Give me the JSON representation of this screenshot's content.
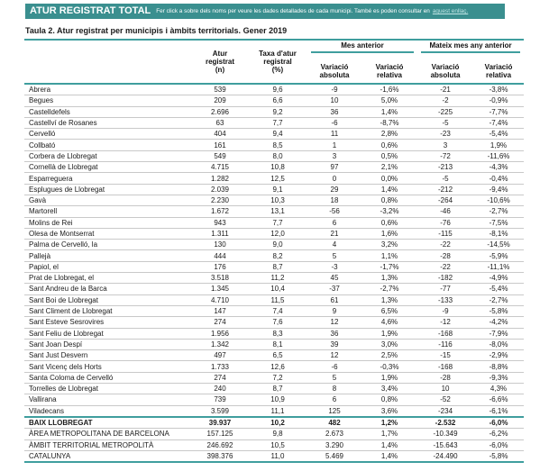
{
  "header_bar": {
    "title": "ATUR REGISTRAT TOTAL",
    "subtitle": "Fer click a sobre dels noms per veure les dades detallades de cada municipi. També es poden consultar en",
    "link_text": "aquest enllaç.",
    "bar_color": "#3a8f8f"
  },
  "table_title": "Taula 2. Atur registrat per municipis i àmbits territorials. Gener 2019",
  "table": {
    "column_headers": {
      "name": "",
      "col_atur": [
        "Atur",
        "registrat",
        "(n)"
      ],
      "col_taxa": [
        "Taxa d'atur",
        "registral",
        "(%)"
      ],
      "group_previous_month": "Mes anterior",
      "group_same_month_last_year": "Mateix mes any anterior",
      "sub_absolute": [
        "Variació",
        "absoluta"
      ],
      "sub_relative": [
        "Variació",
        "relativa"
      ]
    },
    "rows": [
      {
        "type": "municipality",
        "name": "Abrera",
        "values": [
          "539",
          "9,6",
          "-9",
          "-1,6%",
          "-21",
          "-3,8%"
        ]
      },
      {
        "type": "municipality",
        "name": "Begues",
        "values": [
          "209",
          "6,6",
          "10",
          "5,0%",
          "-2",
          "-0,9%"
        ]
      },
      {
        "type": "municipality",
        "name": "Castelldefels",
        "values": [
          "2.696",
          "9,2",
          "36",
          "1,4%",
          "-225",
          "-7,7%"
        ]
      },
      {
        "type": "municipality",
        "name": "Castellví de Rosanes",
        "values": [
          "63",
          "7,7",
          "-6",
          "-8,7%",
          "-5",
          "-7,4%"
        ]
      },
      {
        "type": "municipality",
        "name": "Cervelló",
        "values": [
          "404",
          "9,4",
          "11",
          "2,8%",
          "-23",
          "-5,4%"
        ]
      },
      {
        "type": "municipality",
        "name": "Collbató",
        "values": [
          "161",
          "8,5",
          "1",
          "0,6%",
          "3",
          "1,9%"
        ]
      },
      {
        "type": "municipality",
        "name": "Corbera de Llobregat",
        "values": [
          "549",
          "8,0",
          "3",
          "0,5%",
          "-72",
          "-11,6%"
        ]
      },
      {
        "type": "municipality",
        "name": "Cornellà de Llobregat",
        "values": [
          "4.715",
          "10,8",
          "97",
          "2,1%",
          "-213",
          "-4,3%"
        ]
      },
      {
        "type": "municipality",
        "name": "Esparreguera",
        "values": [
          "1.282",
          "12,5",
          "0",
          "0,0%",
          "-5",
          "-0,4%"
        ]
      },
      {
        "type": "municipality",
        "name": "Esplugues de Llobregat",
        "values": [
          "2.039",
          "9,1",
          "29",
          "1,4%",
          "-212",
          "-9,4%"
        ]
      },
      {
        "type": "municipality",
        "name": "Gavà",
        "values": [
          "2.230",
          "10,3",
          "18",
          "0,8%",
          "-264",
          "-10,6%"
        ]
      },
      {
        "type": "municipality",
        "name": "Martorell",
        "values": [
          "1.672",
          "13,1",
          "-56",
          "-3,2%",
          "-46",
          "-2,7%"
        ]
      },
      {
        "type": "municipality",
        "name": "Molins de Rei",
        "values": [
          "943",
          "7,7",
          "6",
          "0,6%",
          "-76",
          "-7,5%"
        ]
      },
      {
        "type": "municipality",
        "name": "Olesa de Montserrat",
        "values": [
          "1.311",
          "12,0",
          "21",
          "1,6%",
          "-115",
          "-8,1%"
        ]
      },
      {
        "type": "municipality",
        "name": "Palma de Cervelló, la",
        "values": [
          "130",
          "9,0",
          "4",
          "3,2%",
          "-22",
          "-14,5%"
        ]
      },
      {
        "type": "municipality",
        "name": "Pallejà",
        "values": [
          "444",
          "8,2",
          "5",
          "1,1%",
          "-28",
          "-5,9%"
        ]
      },
      {
        "type": "municipality",
        "name": "Papiol, el",
        "values": [
          "176",
          "8,7",
          "-3",
          "-1,7%",
          "-22",
          "-11,1%"
        ]
      },
      {
        "type": "municipality",
        "name": "Prat de Llobregat, el",
        "values": [
          "3.518",
          "11,2",
          "45",
          "1,3%",
          "-182",
          "-4,9%"
        ]
      },
      {
        "type": "municipality",
        "name": "Sant Andreu de la Barca",
        "values": [
          "1.345",
          "10,4",
          "-37",
          "-2,7%",
          "-77",
          "-5,4%"
        ]
      },
      {
        "type": "municipality",
        "name": "Sant Boi de Llobregat",
        "values": [
          "4.710",
          "11,5",
          "61",
          "1,3%",
          "-133",
          "-2,7%"
        ]
      },
      {
        "type": "municipality",
        "name": "Sant Climent de Llobregat",
        "values": [
          "147",
          "7,4",
          "9",
          "6,5%",
          "-9",
          "-5,8%"
        ]
      },
      {
        "type": "municipality",
        "name": "Sant Esteve Sesrovires",
        "values": [
          "274",
          "7,6",
          "12",
          "4,6%",
          "-12",
          "-4,2%"
        ]
      },
      {
        "type": "municipality",
        "name": "Sant Feliu de Llobregat",
        "values": [
          "1.956",
          "8,3",
          "36",
          "1,9%",
          "-168",
          "-7,9%"
        ]
      },
      {
        "type": "municipality",
        "name": "Sant Joan Despí",
        "values": [
          "1.342",
          "8,1",
          "39",
          "3,0%",
          "-116",
          "-8,0%"
        ]
      },
      {
        "type": "municipality",
        "name": "Sant Just Desvern",
        "values": [
          "497",
          "6,5",
          "12",
          "2,5%",
          "-15",
          "-2,9%"
        ]
      },
      {
        "type": "municipality",
        "name": "Sant Vicenç dels Horts",
        "values": [
          "1.733",
          "12,6",
          "-6",
          "-0,3%",
          "-168",
          "-8,8%"
        ]
      },
      {
        "type": "municipality",
        "name": "Santa Coloma de Cervelló",
        "values": [
          "274",
          "7,2",
          "5",
          "1,9%",
          "-28",
          "-9,3%"
        ]
      },
      {
        "type": "municipality",
        "name": "Torrelles de Llobregat",
        "values": [
          "240",
          "8,7",
          "8",
          "3,4%",
          "10",
          "4,3%"
        ]
      },
      {
        "type": "municipality",
        "name": "Vallirana",
        "values": [
          "739",
          "10,9",
          "6",
          "0,8%",
          "-52",
          "-6,6%"
        ]
      },
      {
        "type": "municipality",
        "name": "Viladecans",
        "values": [
          "3.599",
          "11,1",
          "125",
          "3,6%",
          "-234",
          "-6,1%"
        ]
      },
      {
        "type": "total-bold",
        "name": "BAIX LLOBREGAT",
        "values": [
          "39.937",
          "10,2",
          "482",
          "1,2%",
          "-2.532",
          "-6,0%"
        ]
      },
      {
        "type": "aggregate",
        "name": "ÀREA METROPOLITANA DE BARCELONA",
        "values": [
          "157.125",
          "9,8",
          "2.673",
          "1,7%",
          "-10.349",
          "-6,2%"
        ]
      },
      {
        "type": "aggregate",
        "name": "ÀMBIT TERRITORIAL METROPOLITÀ",
        "values": [
          "246.692",
          "10,5",
          "3.290",
          "1,4%",
          "-15.643",
          "-6,0%"
        ]
      },
      {
        "type": "aggregate",
        "name": "CATALUNYA",
        "values": [
          "398.376",
          "11,0",
          "5.469",
          "1,4%",
          "-24.490",
          "-5,8%"
        ]
      }
    ]
  }
}
